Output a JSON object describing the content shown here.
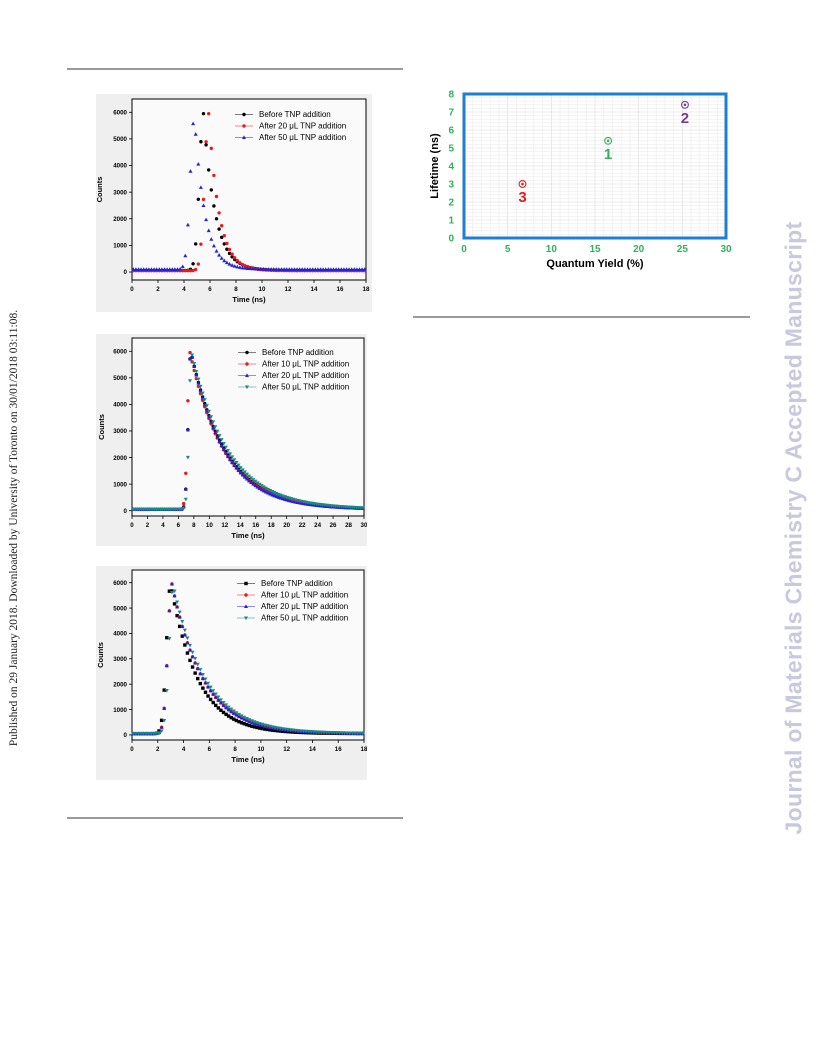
{
  "sidebar_left": "Published on 29 January 2018. Downloaded by University of Toronto on 30/01/2018 03:11:08.",
  "sidebar_right": "Journal of Materials Chemistry C Accepted Manuscript",
  "colors": {
    "black": "#000000",
    "red": "#e8191f",
    "blue": "#2020e0",
    "teal": "#1a8a85",
    "green_axis": "#2fb35a",
    "frame_blue": "#1e7fd0",
    "purple": "#7a3a9a"
  },
  "chart_data": [
    {
      "type": "line",
      "title": "",
      "xlabel": "Time (ns)",
      "ylabel": "Counts",
      "xlim": [
        0,
        18
      ],
      "ylim": [
        -300,
        6500
      ],
      "xticks": [
        0,
        2,
        4,
        6,
        8,
        10,
        12,
        14,
        16,
        18
      ],
      "yticks": [
        0,
        1000,
        2000,
        3000,
        4000,
        5000,
        6000
      ],
      "legend_position": "top-right",
      "series": [
        {
          "name": "Before TNP addition",
          "color": "#000000",
          "marker": "circle",
          "peak_x": 5.5,
          "peak_y": 5950,
          "baseline": 60,
          "tau": 0.9
        },
        {
          "name": "After 20 μL TNP addition",
          "color": "#e8191f",
          "marker": "circle",
          "peak_x": 5.9,
          "peak_y": 5950,
          "baseline": 50,
          "tau": 0.8
        },
        {
          "name": "After 50 μL TNP addition",
          "color": "#2020e0",
          "marker": "triangle",
          "peak_x": 4.8,
          "peak_y": 5850,
          "baseline": 100,
          "tau": 0.8
        }
      ]
    },
    {
      "type": "line",
      "title": "",
      "xlabel": "Time (ns)",
      "ylabel": "Counts",
      "xlim": [
        0,
        30
      ],
      "ylim": [
        -200,
        6500
      ],
      "xticks": [
        0,
        2,
        4,
        6,
        8,
        10,
        12,
        14,
        16,
        18,
        20,
        22,
        24,
        26,
        28,
        30
      ],
      "yticks": [
        0,
        1000,
        2000,
        3000,
        4000,
        5000,
        6000
      ],
      "legend_position": "top-right",
      "series": [
        {
          "name": "Before TNP addition",
          "color": "#000000",
          "marker": "circle",
          "peak_x": 7.6,
          "peak_y": 6000,
          "baseline": 50,
          "tau": 4.5
        },
        {
          "name": "After 10 μL TNP addition",
          "color": "#e8191f",
          "marker": "circle",
          "peak_x": 7.5,
          "peak_y": 5950,
          "baseline": 50,
          "tau": 4.5
        },
        {
          "name": "After 20 μL TNP addition",
          "color": "#2020e0",
          "marker": "triangle",
          "peak_x": 7.6,
          "peak_y": 6000,
          "baseline": 50,
          "tau": 4.4
        },
        {
          "name": "After 50 μL TNP addition",
          "color": "#1a8a85",
          "marker": "triangle-down",
          "peak_x": 7.7,
          "peak_y": 5950,
          "baseline": 50,
          "tau": 4.8
        }
      ]
    },
    {
      "type": "line",
      "title": "",
      "xlabel": "Time (ns)",
      "ylabel": "Counts",
      "xlim": [
        0,
        18
      ],
      "ylim": [
        -200,
        6500
      ],
      "xticks": [
        0,
        2,
        4,
        6,
        8,
        10,
        12,
        14,
        16,
        18
      ],
      "yticks": [
        0,
        1000,
        2000,
        3000,
        4000,
        5000,
        6000
      ],
      "legend_position": "top-right",
      "series": [
        {
          "name": "Before TNP addition",
          "color": "#000000",
          "marker": "square",
          "peak_x": 3.0,
          "peak_y": 5950,
          "baseline": 50,
          "tau": 2.1
        },
        {
          "name": "After 10 μL TNP addition",
          "color": "#e8191f",
          "marker": "circle",
          "peak_x": 3.1,
          "peak_y": 5950,
          "baseline": 50,
          "tau": 2.4
        },
        {
          "name": "After 20 μL TNP addition",
          "color": "#2020e0",
          "marker": "triangle",
          "peak_x": 3.1,
          "peak_y": 5950,
          "baseline": 50,
          "tau": 2.4
        },
        {
          "name": "After 50 μL TNP addition",
          "color": "#1a8a85",
          "marker": "triangle-down",
          "peak_x": 3.2,
          "peak_y": 5900,
          "baseline": 50,
          "tau": 2.5
        }
      ]
    },
    {
      "type": "scatter",
      "title": "",
      "xlabel": "Quantum Yield (%)",
      "ylabel": "Lifetime (ns)",
      "xlim": [
        0,
        30
      ],
      "ylim": [
        0,
        8
      ],
      "xticks": [
        0,
        5,
        10,
        15,
        20,
        25,
        30
      ],
      "yticks": [
        0,
        1,
        2,
        3,
        4,
        5,
        6,
        7,
        8
      ],
      "grid": true,
      "points": [
        {
          "label": "1",
          "x": 16.5,
          "y": 5.4,
          "color": "#2fb35a"
        },
        {
          "label": "2",
          "x": 25.3,
          "y": 7.4,
          "color": "#7a3a9a"
        },
        {
          "label": "3",
          "x": 6.7,
          "y": 3.0,
          "color": "#e8191f"
        }
      ]
    }
  ]
}
